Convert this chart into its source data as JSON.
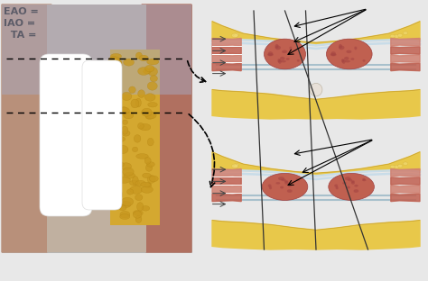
{
  "background_color": "#e8e8e8",
  "labels": [
    "EAO =",
    "IAO =",
    "  TA ="
  ],
  "label_fontsize": 8,
  "label_color": "#111111",
  "label_fontweight": "bold",
  "section_colors": {
    "fat_yellow": "#e8c84a",
    "fat_yellow_light": "#f0d870",
    "fat_yellow_dark": "#c8a030",
    "muscle_red": "#c06050",
    "muscle_red_dark": "#a04040",
    "fascia_blue": "#a8c0cc",
    "fascia_blue_light": "#c8dce8",
    "skin_tan": "#d4a878",
    "bg": "#e8e8e8",
    "white": "#ffffff",
    "linea_alba": "#e0d8c8",
    "gray_line": "#888888"
  }
}
